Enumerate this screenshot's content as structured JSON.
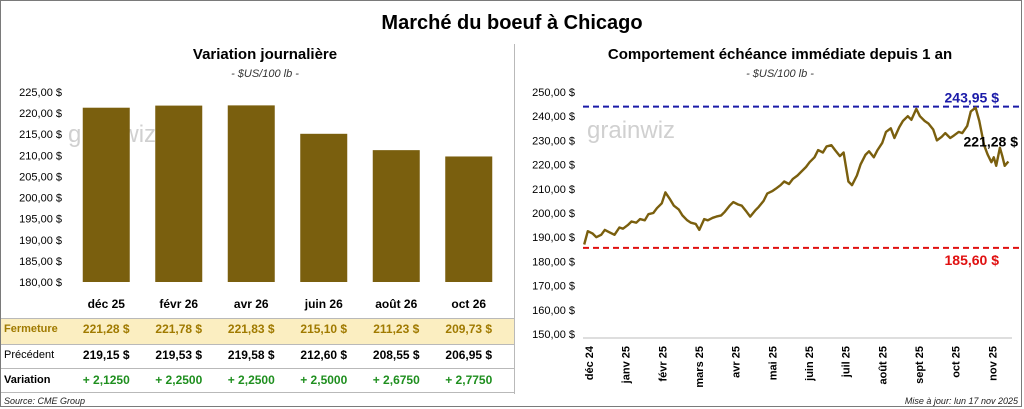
{
  "title": "Marché du boeuf à Chicago",
  "left": {
    "title": "Variation journalière",
    "subtitle": "- $US/100 lb -",
    "watermark": "grainwiz",
    "bar_color": "#7a5f0e",
    "rows": {
      "fermeture_label": "Fermeture",
      "precedent_label": "Précédent",
      "variation_label": "Variation",
      "fermeture": [
        "221,28  $",
        "221,78  $",
        "221,83  $",
        "215,10  $",
        "211,23  $",
        "209,73  $"
      ],
      "precedent": [
        "219,15  $",
        "219,53  $",
        "219,58  $",
        "212,60  $",
        "208,55  $",
        "206,95  $"
      ],
      "variation": [
        "+ 2,1250",
        "+ 2,2500",
        "+ 2,2500",
        "+ 2,5000",
        "+ 2,6750",
        "+ 2,7750"
      ]
    },
    "highlight_color": "#fbeec1",
    "positive_color": "#1f8f1f"
  },
  "right": {
    "title": "Comportement échéance immédiate depuis 1 an",
    "subtitle": "- $US/100 lb -",
    "watermark": "grainwiz",
    "line_color": "#7a5f0e",
    "high_label": "243,95 $",
    "low_label": "185,60 $",
    "last_label": "221,28 $",
    "high_color": "#1a1aa8",
    "low_color": "#e01010"
  },
  "footer": {
    "source": "Source: CME Group",
    "updated": "Mise à jour: lun 17 nov 2025"
  },
  "chart_data": [
    {
      "type": "bar",
      "title": "Variation journalière",
      "subtitle": "- $US/100 lb -",
      "categories": [
        "déc 25",
        "févr 26",
        "avr 26",
        "juin 26",
        "août 26",
        "oct 26"
      ],
      "values": [
        221.28,
        221.78,
        221.83,
        215.1,
        211.23,
        209.73
      ],
      "ylim": [
        180,
        225
      ],
      "yticks": [
        180,
        185,
        190,
        195,
        200,
        205,
        210,
        215,
        220,
        225
      ],
      "ytick_labels": [
        "180,00 $",
        "185,00 $",
        "190,00 $",
        "195,00 $",
        "200,00 $",
        "205,00 $",
        "210,00 $",
        "215,00 $",
        "220,00 $",
        "225,00 $"
      ],
      "grid": false
    },
    {
      "type": "line",
      "title": "Comportement échéance immédiate depuis 1 an",
      "subtitle": "- $US/100 lb -",
      "x_labels": [
        "déc 24",
        "janv 25",
        "févr 25",
        "mars 25",
        "avr 25",
        "mai 25",
        "juin 25",
        "juil 25",
        "août 25",
        "sept 25",
        "oct 25",
        "nov 25"
      ],
      "ylim": [
        150,
        250
      ],
      "yticks": [
        150,
        160,
        170,
        180,
        190,
        200,
        210,
        220,
        230,
        240,
        250
      ],
      "ytick_labels": [
        "150,00 $",
        "160,00 $",
        "170,00 $",
        "180,00 $",
        "190,00 $",
        "200,00 $",
        "210,00 $",
        "220,00 $",
        "230,00 $",
        "240,00 $",
        "250,00 $"
      ],
      "x_start": "2024-12-01",
      "x_end": "2025-11-20",
      "series": [
        {
          "points": [
            [
              "2024-12-02",
              187.0
            ],
            [
              "2024-12-05",
              192.5
            ],
            [
              "2024-12-09",
              191.5
            ],
            [
              "2024-12-12",
              190.0
            ],
            [
              "2024-12-16",
              191.0
            ],
            [
              "2024-12-19",
              193.0
            ],
            [
              "2024-12-23",
              192.0
            ],
            [
              "2024-12-27",
              191.0
            ],
            [
              "2024-12-31",
              194.0
            ],
            [
              "2025-01-03",
              193.5
            ],
            [
              "2025-01-07",
              195.0
            ],
            [
              "2025-01-10",
              196.5
            ],
            [
              "2025-01-14",
              196.0
            ],
            [
              "2025-01-17",
              197.5
            ],
            [
              "2025-01-21",
              197.0
            ],
            [
              "2025-01-24",
              199.5
            ],
            [
              "2025-01-28",
              200.0
            ],
            [
              "2025-01-31",
              202.0
            ],
            [
              "2025-02-04",
              204.0
            ],
            [
              "2025-02-07",
              208.5
            ],
            [
              "2025-02-11",
              205.5
            ],
            [
              "2025-02-14",
              203.0
            ],
            [
              "2025-02-18",
              201.5
            ],
            [
              "2025-02-21",
              199.0
            ],
            [
              "2025-02-25",
              197.0
            ],
            [
              "2025-02-28",
              196.0
            ],
            [
              "2025-03-04",
              195.5
            ],
            [
              "2025-03-07",
              193.0
            ],
            [
              "2025-03-11",
              197.5
            ],
            [
              "2025-03-14",
              197.0
            ],
            [
              "2025-03-18",
              198.0
            ],
            [
              "2025-03-21",
              198.5
            ],
            [
              "2025-03-25",
              199.0
            ],
            [
              "2025-03-28",
              200.5
            ],
            [
              "2025-04-01",
              203.0
            ],
            [
              "2025-04-04",
              204.5
            ],
            [
              "2025-04-08",
              203.5
            ],
            [
              "2025-04-11",
              203.0
            ],
            [
              "2025-04-15",
              200.5
            ],
            [
              "2025-04-18",
              198.5
            ],
            [
              "2025-04-22",
              201.0
            ],
            [
              "2025-04-25",
              202.5
            ],
            [
              "2025-04-29",
              205.0
            ],
            [
              "2025-05-02",
              208.0
            ],
            [
              "2025-05-06",
              209.0
            ],
            [
              "2025-05-09",
              210.0
            ],
            [
              "2025-05-13",
              211.5
            ],
            [
              "2025-05-16",
              213.0
            ],
            [
              "2025-05-20",
              212.0
            ],
            [
              "2025-05-23",
              214.0
            ],
            [
              "2025-05-27",
              215.5
            ],
            [
              "2025-05-30",
              217.0
            ],
            [
              "2025-06-03",
              219.0
            ],
            [
              "2025-06-06",
              221.0
            ],
            [
              "2025-06-10",
              223.0
            ],
            [
              "2025-06-13",
              226.0
            ],
            [
              "2025-06-17",
              225.0
            ],
            [
              "2025-06-20",
              227.5
            ],
            [
              "2025-06-24",
              228.0
            ],
            [
              "2025-06-27",
              226.0
            ],
            [
              "2025-07-01",
              223.5
            ],
            [
              "2025-07-04",
              225.0
            ],
            [
              "2025-07-08",
              213.0
            ],
            [
              "2025-07-11",
              211.5
            ],
            [
              "2025-07-15",
              215.5
            ],
            [
              "2025-07-18",
              220.0
            ],
            [
              "2025-07-22",
              224.0
            ],
            [
              "2025-07-25",
              225.5
            ],
            [
              "2025-07-29",
              223.0
            ],
            [
              "2025-08-01",
              226.0
            ],
            [
              "2025-08-05",
              229.0
            ],
            [
              "2025-08-08",
              233.5
            ],
            [
              "2025-08-12",
              235.0
            ],
            [
              "2025-08-15",
              231.0
            ],
            [
              "2025-08-19",
              235.5
            ],
            [
              "2025-08-22",
              238.0
            ],
            [
              "2025-08-26",
              240.0
            ],
            [
              "2025-08-29",
              238.5
            ],
            [
              "2025-09-02",
              243.0
            ],
            [
              "2025-09-05",
              240.0
            ],
            [
              "2025-09-09",
              238.0
            ],
            [
              "2025-09-12",
              237.0
            ],
            [
              "2025-09-16",
              234.5
            ],
            [
              "2025-09-19",
              230.0
            ],
            [
              "2025-09-23",
              231.5
            ],
            [
              "2025-09-26",
              233.0
            ],
            [
              "2025-09-30",
              231.0
            ],
            [
              "2025-10-03",
              232.0
            ],
            [
              "2025-10-07",
              233.5
            ],
            [
              "2025-10-10",
              233.0
            ],
            [
              "2025-10-14",
              236.0
            ],
            [
              "2025-10-17",
              242.0
            ],
            [
              "2025-10-21",
              243.5
            ],
            [
              "2025-10-24",
              238.0
            ],
            [
              "2025-10-28",
              228.0
            ],
            [
              "2025-10-31",
              224.0
            ],
            [
              "2025-11-03",
              221.0
            ],
            [
              "2025-11-05",
              223.0
            ],
            [
              "2025-11-07",
              219.5
            ],
            [
              "2025-11-10",
              227.0
            ],
            [
              "2025-11-12",
              223.5
            ],
            [
              "2025-11-14",
              219.5
            ],
            [
              "2025-11-17",
              221.28
            ]
          ]
        }
      ],
      "reference_lines": [
        {
          "label": "243,95 $",
          "value": 243.95,
          "style": "dashed"
        },
        {
          "label": "185,60 $",
          "value": 185.6,
          "style": "dashed"
        }
      ],
      "grid": false
    }
  ]
}
